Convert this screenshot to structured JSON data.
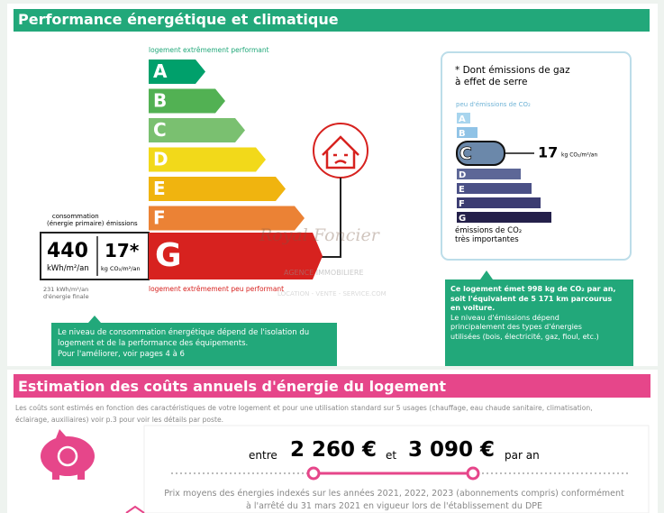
{
  "energy_section": {
    "title": "Performance énergétique et climatique",
    "label_top": "logement extrêmement performant",
    "label_bottom": "logement extrêmement peu performant",
    "classes": [
      "A",
      "B",
      "C",
      "D",
      "E",
      "F",
      "G"
    ],
    "rating": "G",
    "consumption_label": [
      "consommation",
      "(énergie primaire)"
    ],
    "emissions_label": "émissions",
    "consumption_value": "440",
    "consumption_unit": "kWh/m²/an",
    "emissions_value": "17*",
    "emissions_unit": "kg CO₂/m²/an",
    "final_energy": [
      "231 kWh/m²/an",
      "d'énergie finale"
    ],
    "note": [
      "Le niveau de consommation énergétique dépend de l'isolation du",
      "logement et de la performance des équipements.",
      "Pour l'améliorer, voir pages 4 à 6"
    ]
  },
  "ges_section": {
    "heading": [
      "* Dont émissions de gaz",
      "à effet de serre"
    ],
    "label_top": "peu d'émissions de CO₂",
    "classes": [
      "A",
      "B",
      "C",
      "D",
      "E",
      "F",
      "G"
    ],
    "rating": "C",
    "value": "17",
    "unit": "kg CO₂/m²/an",
    "label_bottom": [
      "émissions de CO₂",
      "très importantes"
    ],
    "note_bold": [
      "Ce logement émet 998 kg de CO₂ par an,",
      "soit l'équivalent de 5 171 km parcourus",
      "en voiture."
    ],
    "note": [
      "Le niveau d'émissions dépend",
      "principalement des types d'énergies",
      "utilisées (bois, électricité, gaz, fioul, etc.)"
    ]
  },
  "watermark": {
    "name": "Royal Foncier",
    "line1": "AGENCE IMMOBILIERE",
    "line2": "LOCATION - VENTE - SERVICE.COM"
  },
  "cost_section": {
    "title": "Estimation des coûts annuels d'énergie du logement",
    "intro": [
      "Les coûts sont estimés en fonction des caractéristiques de votre logement et pour une utilisation standard sur 5 usages (chauffage, eau chaude sanitaire, climatisation,",
      "éclairage, auxiliaires) voir p.3 pour voir les détails par poste."
    ],
    "between": "entre",
    "low": "2 260 €",
    "and": "et",
    "high": "3 090 €",
    "per_year": "par an",
    "footnote": [
      "Prix moyens des énergies indexés sur les années 2021, 2022, 2023 (abonnements compris) conformément",
      "à l'arrêté du 31 mars 2021 en vigueur lors de l'établissement du DPE"
    ]
  }
}
